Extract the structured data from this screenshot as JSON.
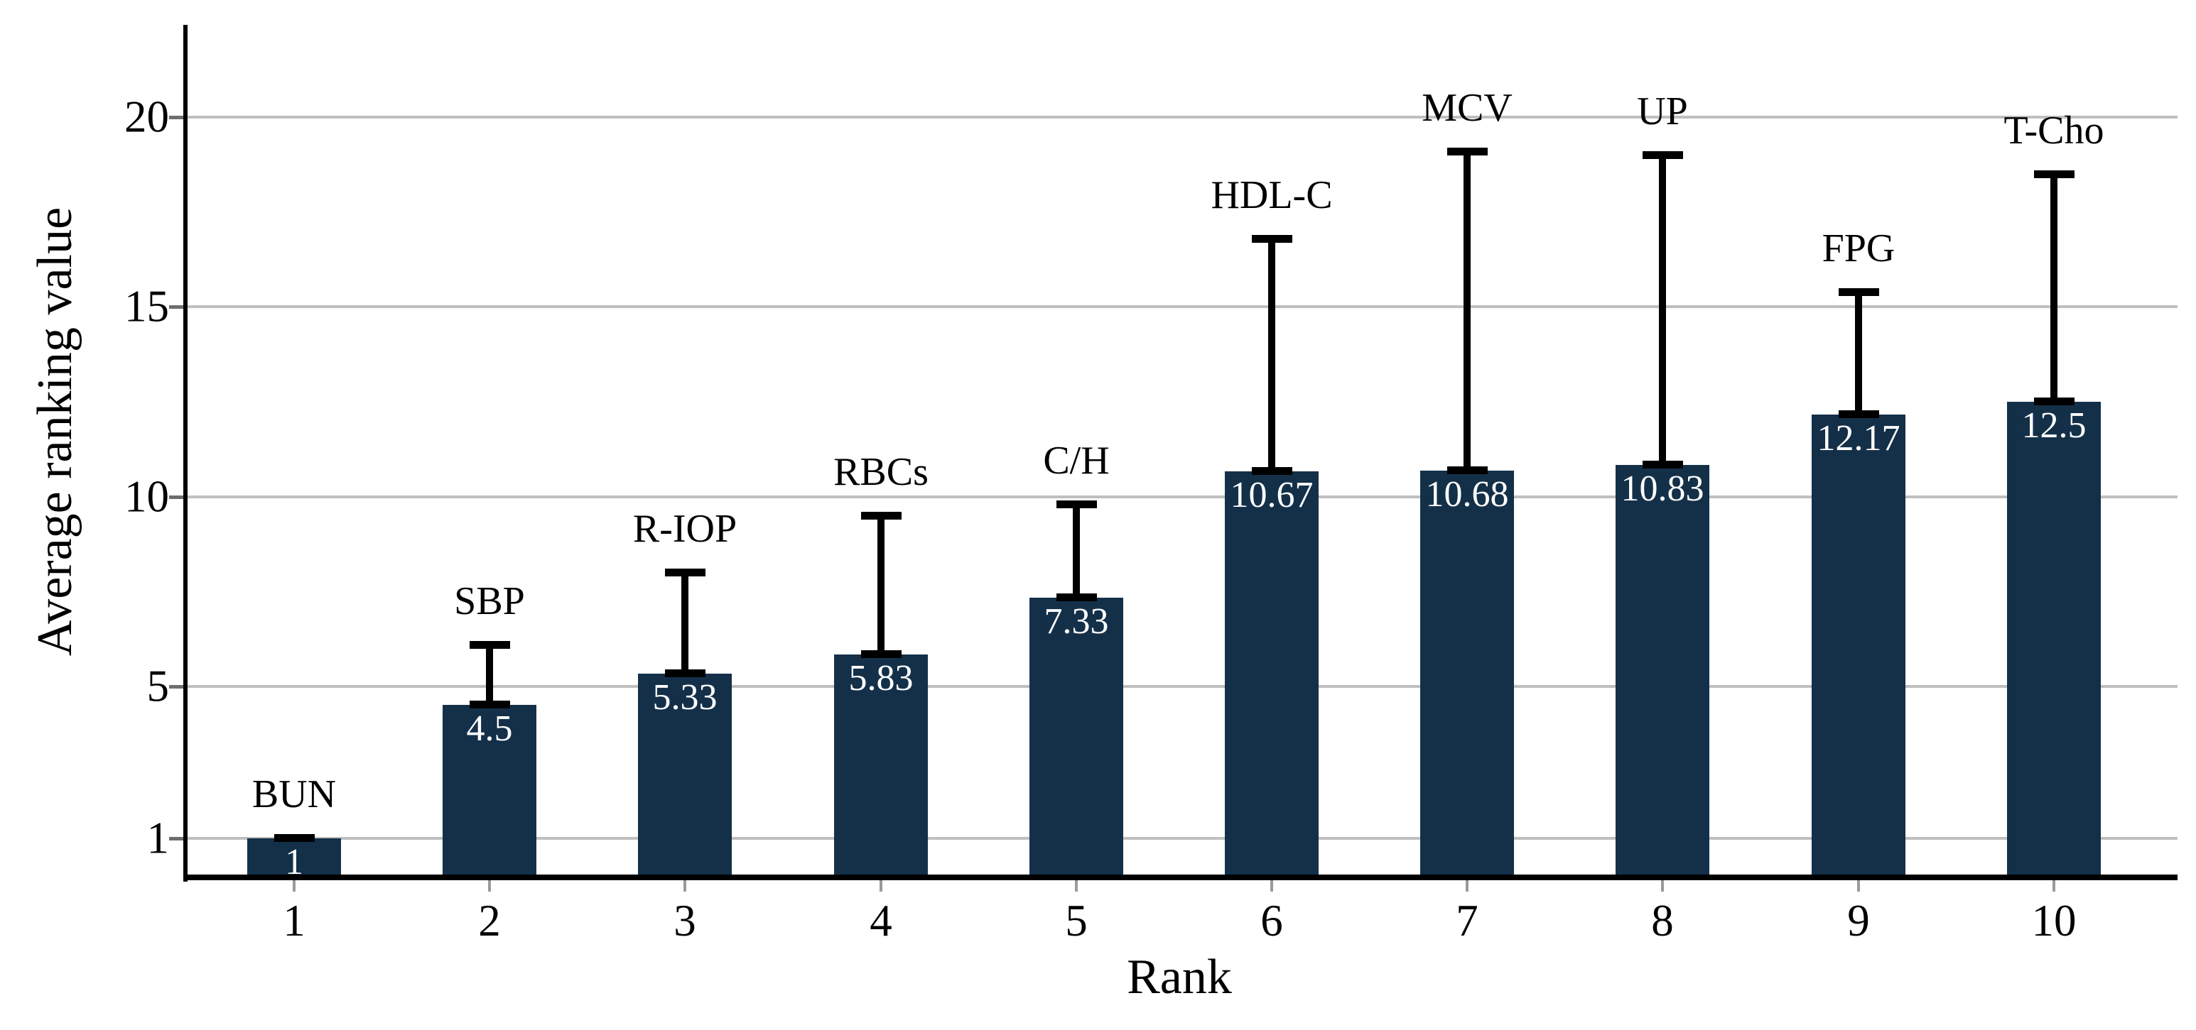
{
  "chart_data": {
    "type": "bar",
    "title": "",
    "xlabel": "Rank",
    "ylabel": "Average ranking value",
    "categories": [
      "1",
      "2",
      "3",
      "4",
      "5",
      "6",
      "7",
      "8",
      "9",
      "10"
    ],
    "bar_labels": [
      "BUN",
      "SBP",
      "R-IOP",
      "RBCs",
      "C/H",
      "HDL-C",
      "MCV",
      "UP",
      "FPG",
      "T-Cho"
    ],
    "values": [
      1,
      4.5,
      5.33,
      5.83,
      7.33,
      10.67,
      10.68,
      10.83,
      12.17,
      12.5
    ],
    "value_labels": [
      "1",
      "4.5",
      "5.33",
      "5.83",
      "7.33",
      "10.67",
      "10.68",
      "10.83",
      "12.17",
      "12.5"
    ],
    "error_top": [
      1.1,
      6.2,
      8.1,
      9.6,
      9.9,
      16.9,
      19.2,
      19.1,
      15.5,
      18.6
    ],
    "error_bars": "upper whisker with caps, drawn from bar top (mean) to mean+SD",
    "y_ticks": [
      1,
      5,
      10,
      15,
      20
    ],
    "ylim": [
      0,
      21.5
    ],
    "grid": true,
    "legend": false
  },
  "colors": {
    "background": "#ffffff",
    "bar_fill": "#143049",
    "error_bar": "#000000",
    "gridline": "#bfbfbf",
    "axis_line": "#000000",
    "y_tick_mark": "#6e6e6e",
    "x_tick_mark": "#9a9a9a",
    "value_label_text": "#ffffff",
    "label_text": "#000000"
  }
}
